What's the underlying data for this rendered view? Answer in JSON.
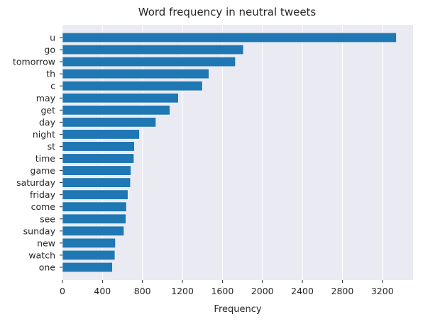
{
  "chart_data": {
    "type": "bar",
    "orientation": "horizontal",
    "title": "Word frequency in neutral tweets",
    "xlabel": "Frequency",
    "ylabel": "",
    "categories": [
      "u",
      "go",
      "tomorrow",
      "th",
      "c",
      "may",
      "get",
      "day",
      "night",
      "st",
      "time",
      "game",
      "saturday",
      "friday",
      "come",
      "see",
      "sunday",
      "new",
      "watch",
      "one"
    ],
    "values": [
      3340,
      1810,
      1730,
      1465,
      1400,
      1160,
      1075,
      935,
      770,
      720,
      715,
      685,
      680,
      655,
      640,
      635,
      615,
      530,
      525,
      500
    ],
    "xticks": [
      0,
      400,
      800,
      1200,
      1600,
      2000,
      2400,
      2800,
      3200
    ],
    "xlim": [
      0,
      3507
    ],
    "grid": "vertical",
    "colors": {
      "bar": "#1f77b4",
      "plot_background": "#eaeaf2",
      "grid": "#ffffff",
      "text": "#262626"
    }
  }
}
